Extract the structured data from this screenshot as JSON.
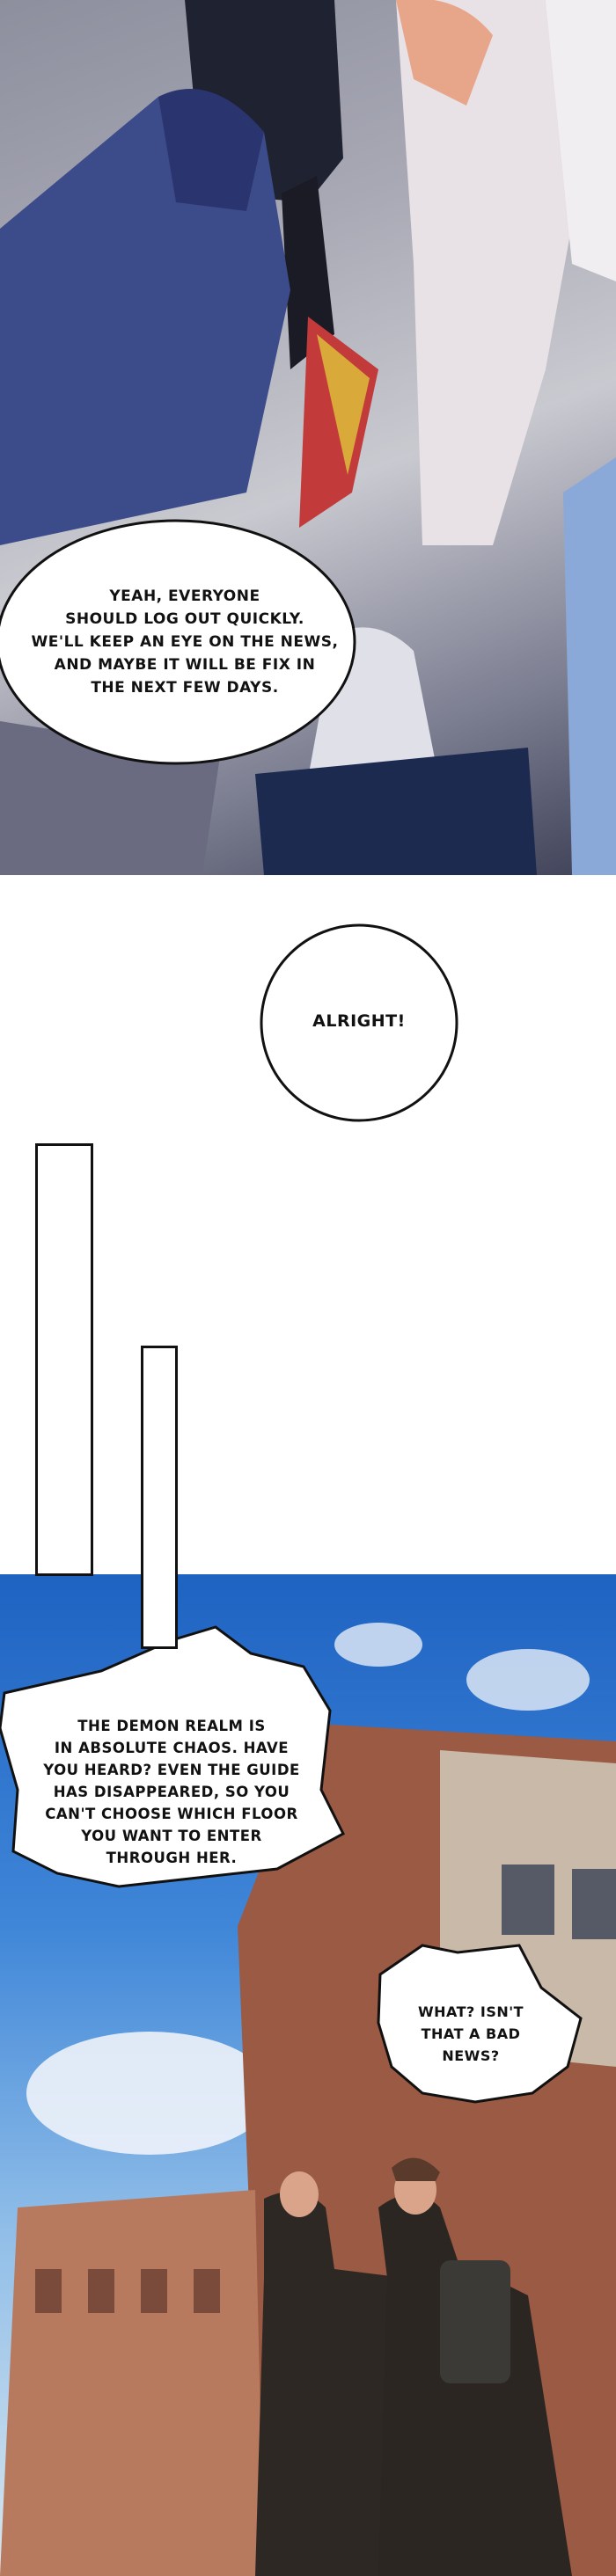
{
  "panels": [
    {
      "scene": "fantasy party gathering",
      "bubble": "YEAH, EVERYONE\nSHOULD LOG OUT QUICKLY.\nWE'LL KEEP AN EYE ON THE NEWS,\nAND MAYBE IT WILL BE FIX IN\nTHE NEXT FEW DAYS."
    },
    {
      "bubble": "ALRIGHT!"
    },
    {
      "scene": "campus street with students",
      "bubble_1": "THE DEMON REALM IS\nIN ABSOLUTE CHAOS. HAVE\nYOU HEARD? EVEN THE GUIDE\nHAS DISAPPEARED, SO YOU\nCAN'T CHOOSE WHICH FLOOR\nYOU WANT TO ENTER\nTHROUGH HER.",
      "bubble_2": "WHAT? ISN'T\nTHAT A BAD\nNEWS?"
    }
  ],
  "colors": {
    "sky": "#2f74cc",
    "brick": "#9a5a44",
    "floor": "#b9b9c3"
  }
}
